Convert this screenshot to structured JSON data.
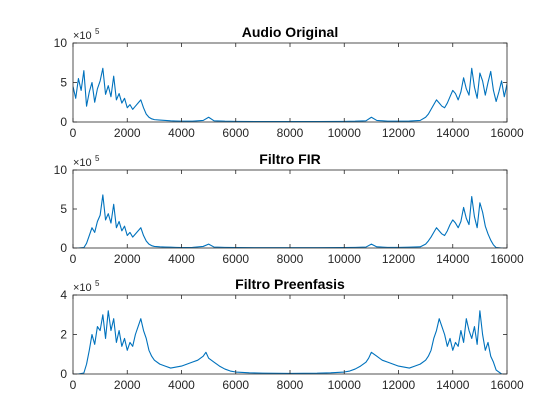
{
  "figure": {
    "background": "#ffffff",
    "axis_color": "#262626",
    "line_color": "#0072BD"
  },
  "chart_data": [
    {
      "type": "line",
      "title": "Audio Original",
      "xlim": [
        0,
        16000
      ],
      "ylim": [
        0,
        10
      ],
      "y_exponent_label": "×10",
      "y_exponent_power": "5",
      "x_ticks": [
        0,
        2000,
        4000,
        6000,
        8000,
        10000,
        12000,
        14000,
        16000
      ],
      "y_ticks": [
        0,
        5,
        10
      ],
      "grid": false,
      "series": [
        {
          "x": [
            0,
            100,
            200,
            300,
            400,
            500,
            600,
            700,
            800,
            900,
            1000,
            1100,
            1200,
            1300,
            1400,
            1500,
            1600,
            1700,
            1800,
            1900,
            2000,
            2100,
            2200,
            2300,
            2400,
            2500,
            2600,
            2700,
            2800,
            2900,
            3000,
            3200,
            3400,
            3600,
            3800,
            4000,
            4400,
            4800,
            5000,
            5200,
            5600,
            6000,
            7000,
            8000,
            9000,
            10000,
            10400,
            10800,
            11000,
            11200,
            11600,
            12000,
            12400,
            12800,
            13000,
            13100,
            13200,
            13300,
            13400,
            13500,
            13600,
            13700,
            13800,
            13900,
            14000,
            14100,
            14200,
            14300,
            14400,
            14500,
            14600,
            14700,
            14800,
            14900,
            15000,
            15100,
            15200,
            15300,
            15400,
            15500,
            15600,
            15700,
            15800,
            15900,
            16000
          ],
          "y": [
            4.5,
            3,
            5.5,
            4,
            6.5,
            2,
            3.8,
            5,
            2.5,
            4.2,
            5.2,
            6.8,
            3.5,
            4.6,
            3.2,
            5.8,
            2.8,
            3.6,
            2.4,
            3,
            1.8,
            2.2,
            1.6,
            2,
            2.4,
            2.8,
            1.8,
            1,
            0.6,
            0.4,
            0.3,
            0.25,
            0.2,
            0.15,
            0.12,
            0.1,
            0.1,
            0.2,
            0.6,
            0.15,
            0.1,
            0.08,
            0.05,
            0.05,
            0.05,
            0.08,
            0.1,
            0.15,
            0.6,
            0.2,
            0.1,
            0.1,
            0.12,
            0.2,
            0.6,
            1,
            1.6,
            2.2,
            2.8,
            2.4,
            2,
            1.8,
            2.4,
            3.2,
            4,
            3.6,
            2.8,
            3.8,
            5.6,
            4.2,
            3.4,
            6.8,
            4.4,
            3,
            6.2,
            5.2,
            3.4,
            5,
            6.4,
            4,
            2.6,
            3.8,
            5.2,
            3.2,
            4.8
          ]
        }
      ]
    },
    {
      "type": "line",
      "title": "Filtro FIR",
      "xlim": [
        0,
        16000
      ],
      "ylim": [
        0,
        10
      ],
      "y_exponent_label": "×10",
      "y_exponent_power": "5",
      "x_ticks": [
        0,
        2000,
        4000,
        6000,
        8000,
        10000,
        12000,
        14000,
        16000
      ],
      "y_ticks": [
        0,
        5,
        10
      ],
      "grid": false,
      "series": [
        {
          "x": [
            0,
            200,
            400,
            500,
            600,
            700,
            800,
            900,
            1000,
            1100,
            1200,
            1300,
            1400,
            1500,
            1600,
            1700,
            1800,
            1900,
            2000,
            2100,
            2200,
            2300,
            2400,
            2500,
            2600,
            2700,
            2800,
            2900,
            3000,
            3200,
            3400,
            3600,
            3800,
            4000,
            4400,
            4800,
            5000,
            5200,
            5600,
            6000,
            7000,
            8000,
            9000,
            10000,
            10400,
            10800,
            11000,
            11200,
            11600,
            12000,
            12400,
            12800,
            13000,
            13100,
            13200,
            13300,
            13400,
            13500,
            13600,
            13700,
            13800,
            13900,
            14000,
            14100,
            14200,
            14300,
            14400,
            14500,
            14600,
            14700,
            14800,
            14900,
            15000,
            15100,
            15200,
            15300,
            15400,
            15500,
            15600,
            15800,
            16000
          ],
          "y": [
            0,
            0,
            0.05,
            0.6,
            1.6,
            2.6,
            2,
            3.4,
            4.2,
            6.8,
            3.6,
            4.4,
            3.2,
            5.6,
            2.6,
            3.4,
            2.2,
            2.8,
            1.6,
            2,
            1.4,
            1.8,
            2.2,
            2.6,
            1.6,
            0.9,
            0.5,
            0.3,
            0.2,
            0.15,
            0.12,
            0.1,
            0.08,
            0.06,
            0.08,
            0.2,
            0.5,
            0.12,
            0.08,
            0.05,
            0.04,
            0.04,
            0.04,
            0.06,
            0.08,
            0.12,
            0.5,
            0.15,
            0.08,
            0.08,
            0.1,
            0.15,
            0.5,
            0.9,
            1.4,
            2,
            2.6,
            2.2,
            1.8,
            1.6,
            2.2,
            3,
            3.6,
            3.2,
            2.6,
            3.4,
            5.2,
            3.8,
            3,
            6.6,
            4,
            2.6,
            5.8,
            4.6,
            2.8,
            1.8,
            1,
            0.4,
            0.05,
            0,
            0
          ]
        }
      ]
    },
    {
      "type": "line",
      "title": "Filtro Preenfasis",
      "xlim": [
        0,
        16000
      ],
      "ylim": [
        0,
        4
      ],
      "y_exponent_label": "×10",
      "y_exponent_power": "5",
      "x_ticks": [
        0,
        2000,
        4000,
        6000,
        8000,
        10000,
        12000,
        14000,
        16000
      ],
      "y_ticks": [
        0,
        2,
        4
      ],
      "grid": false,
      "series": [
        {
          "x": [
            0,
            200,
            400,
            500,
            600,
            700,
            800,
            900,
            1000,
            1100,
            1200,
            1300,
            1400,
            1500,
            1600,
            1700,
            1800,
            1900,
            2000,
            2100,
            2200,
            2300,
            2400,
            2500,
            2600,
            2700,
            2800,
            2900,
            3000,
            3200,
            3400,
            3600,
            3800,
            4000,
            4200,
            4400,
            4600,
            4800,
            4900,
            5000,
            5200,
            5400,
            5600,
            5800,
            6000,
            6500,
            7000,
            8000,
            9000,
            9500,
            10000,
            10200,
            10400,
            10600,
            10800,
            10900,
            11000,
            11200,
            11400,
            11600,
            11800,
            12000,
            12200,
            12400,
            12600,
            12800,
            13000,
            13100,
            13200,
            13300,
            13400,
            13500,
            13600,
            13700,
            13800,
            13900,
            14000,
            14100,
            14200,
            14300,
            14400,
            14500,
            14600,
            14700,
            14800,
            14900,
            15000,
            15100,
            15200,
            15300,
            15400,
            15500,
            15600,
            15800,
            16000
          ],
          "y": [
            0,
            0,
            0.05,
            0.5,
            1.2,
            2,
            1.5,
            2.4,
            2.2,
            3,
            1.8,
            3.2,
            2.2,
            2.8,
            1.6,
            2.2,
            1.4,
            1.8,
            1.2,
            1.6,
            1.4,
            2,
            2.4,
            2.8,
            2.2,
            1.8,
            1.2,
            0.9,
            0.7,
            0.5,
            0.4,
            0.3,
            0.35,
            0.4,
            0.5,
            0.6,
            0.7,
            0.9,
            1.1,
            0.8,
            0.6,
            0.4,
            0.25,
            0.15,
            0.1,
            0.06,
            0.04,
            0.03,
            0.04,
            0.06,
            0.1,
            0.15,
            0.25,
            0.4,
            0.6,
            0.8,
            1.1,
            0.9,
            0.7,
            0.6,
            0.5,
            0.4,
            0.35,
            0.3,
            0.4,
            0.5,
            0.7,
            0.9,
            1.2,
            1.8,
            2.2,
            2.8,
            2.4,
            2,
            1.4,
            1.8,
            1.2,
            1.6,
            1.4,
            2.2,
            1.6,
            2.8,
            2.2,
            1.8,
            2.4,
            1.5,
            3.2,
            2,
            1.2,
            1.6,
            0.9,
            0.6,
            0.2,
            0,
            0
          ]
        }
      ]
    }
  ]
}
